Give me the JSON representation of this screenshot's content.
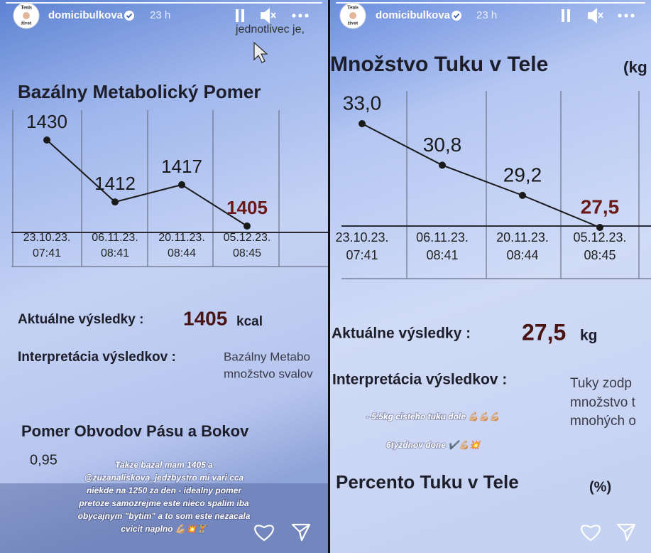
{
  "stories": [
    {
      "username": "domicibulkova",
      "time": "23 h",
      "avatar_text": [
        "Tenis",
        "život"
      ],
      "overlay_text": "jednotlivec je,",
      "chart": {
        "title": "Bazálny Metabolický Pomer",
        "dates": [
          "23.10.23.",
          "06.11.23.",
          "20.11.23.",
          "05.12.23."
        ],
        "times": [
          "07:41",
          "08:41",
          "08:44",
          "08:45"
        ],
        "values": [
          1430,
          1412,
          1417,
          1405
        ],
        "color": "#1a1a1a",
        "highlight_color": "#6b1a1a"
      },
      "result_label": "Aktuálne výsledky :",
      "result_value": "1405",
      "result_unit": "kcal",
      "interpretation_label": "Interpretácia výsledkov :",
      "interpretation_text": [
        "Bazálny Metabo",
        "množstvo svalov"
      ],
      "next_title": "Pomer Obvodov Pásu a Bokov",
      "next_value": "0,95",
      "caption": [
        "Takze bazal mam 1405 a",
        "@zuzanaliskova_jedzbystro mi vari cca",
        "niekde na 1250 za den - idealny pomer",
        "pretoze samozrejme este nieco spalim iba",
        "obycajnym \"bytim\" a to som este nezacala",
        "cvicit naplno 💪🏼💥🏋"
      ]
    },
    {
      "username": "domicibulkova",
      "time": "23 h",
      "avatar_text": [
        "Tenis",
        "život"
      ],
      "chart": {
        "title": "Množstvo Tuku v Tele",
        "title_suffix": "(kg",
        "dates": [
          "23.10.23.",
          "06.11.23.",
          "20.11.23.",
          "05.12.23."
        ],
        "times": [
          "07:41",
          "08:41",
          "08:44",
          "08:45"
        ],
        "values": [
          33.0,
          30.8,
          29.2,
          27.5
        ],
        "value_labels": [
          "33,0",
          "30,8",
          "29,2",
          "27,5"
        ],
        "color": "#1a1a1a",
        "highlight_color": "#6b1a1a"
      },
      "result_label": "Aktuálne výsledky :",
      "result_value": "27,5",
      "result_unit": "kg",
      "interpretation_label": "Interpretácia výsledkov :",
      "interpretation_text": [
        "Tuky zodp",
        "množstvo t",
        "mnohých o"
      ],
      "caption": [
        "- 5.5kg cisteho tuku dole 💪🏼💪🏼💪🏼",
        "6tyzdnov done ✔️💪🏼💥"
      ],
      "next_title": "Percento Tuku v Tele",
      "next_suffix": "(%)"
    }
  ]
}
